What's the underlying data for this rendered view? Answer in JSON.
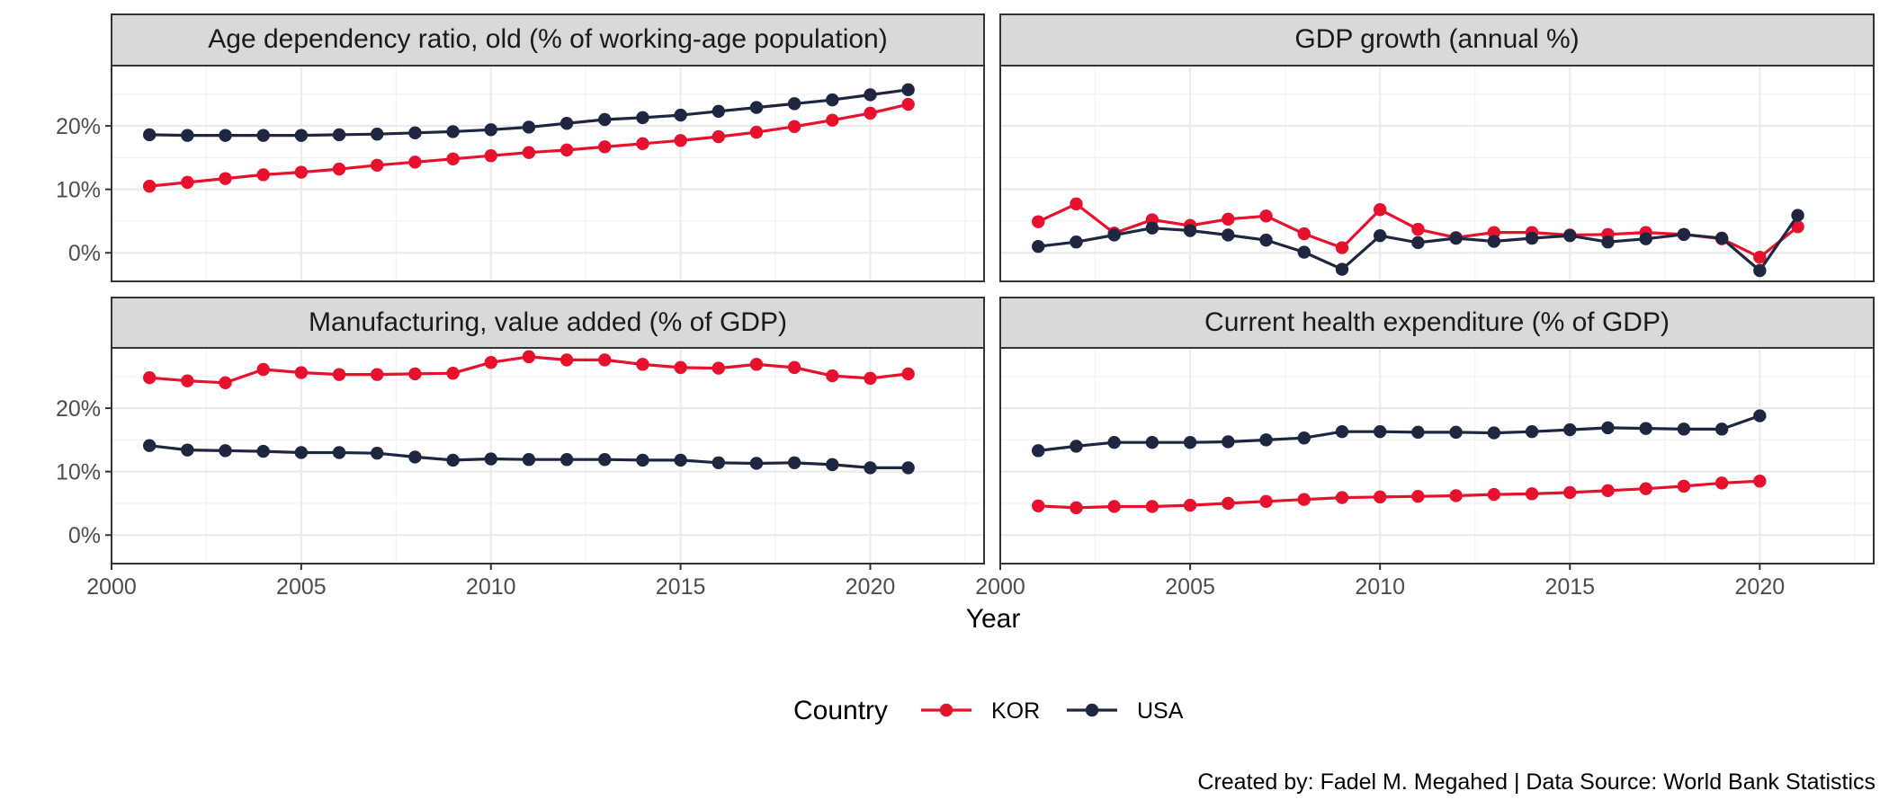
{
  "chart_data": {
    "type": "line",
    "x_label": "Year",
    "x_ticks": [
      2000,
      2005,
      2010,
      2015,
      2020
    ],
    "y_ticks": [
      "0%",
      "10%",
      "20%"
    ],
    "xlim": [
      2000,
      2023
    ],
    "ylim": [
      -4.5,
      29.5
    ],
    "grid": true,
    "legend": {
      "title": "Country",
      "placement": "bottom",
      "entries": [
        "KOR",
        "USA"
      ]
    },
    "colors": {
      "KOR": "#e8112d",
      "USA": "#1f2740"
    },
    "caption": "Created by: Fadel M. Megahed | Data Source: World Bank Statistics",
    "panels": [
      {
        "title": "Age dependency ratio, old (% of working-age population)",
        "series": [
          {
            "name": "KOR",
            "x": [
              2001,
              2002,
              2003,
              2004,
              2005,
              2006,
              2007,
              2008,
              2009,
              2010,
              2011,
              2012,
              2013,
              2014,
              2015,
              2016,
              2017,
              2018,
              2019,
              2020,
              2021
            ],
            "values": [
              10.5,
              11.1,
              11.7,
              12.3,
              12.7,
              13.2,
              13.8,
              14.3,
              14.8,
              15.3,
              15.8,
              16.2,
              16.7,
              17.2,
              17.7,
              18.3,
              19.0,
              19.9,
              20.9,
              22.0,
              23.4
            ]
          },
          {
            "name": "USA",
            "x": [
              2001,
              2002,
              2003,
              2004,
              2005,
              2006,
              2007,
              2008,
              2009,
              2010,
              2011,
              2012,
              2013,
              2014,
              2015,
              2016,
              2017,
              2018,
              2019,
              2020,
              2021
            ],
            "values": [
              18.6,
              18.5,
              18.5,
              18.5,
              18.5,
              18.6,
              18.7,
              18.9,
              19.1,
              19.4,
              19.8,
              20.4,
              21.0,
              21.3,
              21.7,
              22.3,
              22.9,
              23.5,
              24.1,
              24.9,
              25.7
            ]
          }
        ]
      },
      {
        "title": "GDP growth (annual %)",
        "series": [
          {
            "name": "KOR",
            "x": [
              2001,
              2002,
              2003,
              2004,
              2005,
              2006,
              2007,
              2008,
              2009,
              2010,
              2011,
              2012,
              2013,
              2014,
              2015,
              2016,
              2017,
              2018,
              2019,
              2020,
              2021
            ],
            "values": [
              4.9,
              7.7,
              3.1,
              5.2,
              4.3,
              5.3,
              5.8,
              3.0,
              0.8,
              6.8,
              3.7,
              2.4,
              3.2,
              3.2,
              2.8,
              2.9,
              3.2,
              2.9,
              2.2,
              -0.7,
              4.1
            ]
          },
          {
            "name": "USA",
            "x": [
              2001,
              2002,
              2003,
              2004,
              2005,
              2006,
              2007,
              2008,
              2009,
              2010,
              2011,
              2012,
              2013,
              2014,
              2015,
              2016,
              2017,
              2018,
              2019,
              2020,
              2021
            ],
            "values": [
              1.0,
              1.7,
              2.8,
              3.9,
              3.5,
              2.8,
              2.0,
              0.1,
              -2.6,
              2.7,
              1.6,
              2.3,
              1.8,
              2.3,
              2.7,
              1.7,
              2.2,
              2.9,
              2.3,
              -2.8,
              5.9
            ]
          }
        ]
      },
      {
        "title": "Manufacturing, value added (% of GDP)",
        "series": [
          {
            "name": "KOR",
            "x": [
              2001,
              2002,
              2003,
              2004,
              2005,
              2006,
              2007,
              2008,
              2009,
              2010,
              2011,
              2012,
              2013,
              2014,
              2015,
              2016,
              2017,
              2018,
              2019,
              2020,
              2021
            ],
            "values": [
              24.8,
              24.3,
              24.0,
              26.1,
              25.6,
              25.3,
              25.3,
              25.4,
              25.5,
              27.2,
              28.1,
              27.6,
              27.6,
              26.9,
              26.4,
              26.3,
              26.9,
              26.4,
              25.1,
              24.7,
              25.4
            ]
          },
          {
            "name": "USA",
            "x": [
              2001,
              2002,
              2003,
              2004,
              2005,
              2006,
              2007,
              2008,
              2009,
              2010,
              2011,
              2012,
              2013,
              2014,
              2015,
              2016,
              2017,
              2018,
              2019,
              2020,
              2021
            ],
            "values": [
              14.1,
              13.4,
              13.3,
              13.2,
              13.0,
              13.0,
              12.9,
              12.3,
              11.8,
              12.0,
              11.9,
              11.9,
              11.9,
              11.8,
              11.8,
              11.4,
              11.3,
              11.4,
              11.1,
              10.6,
              10.6
            ]
          }
        ]
      },
      {
        "title": "Current health expenditure (% of GDP)",
        "series": [
          {
            "name": "KOR",
            "x": [
              2001,
              2002,
              2003,
              2004,
              2005,
              2006,
              2007,
              2008,
              2009,
              2010,
              2011,
              2012,
              2013,
              2014,
              2015,
              2016,
              2017,
              2018,
              2019,
              2020
            ],
            "values": [
              4.6,
              4.3,
              4.5,
              4.5,
              4.7,
              5.0,
              5.3,
              5.6,
              5.9,
              6.0,
              6.1,
              6.2,
              6.4,
              6.5,
              6.7,
              7.0,
              7.3,
              7.7,
              8.2,
              8.5
            ]
          },
          {
            "name": "USA",
            "x": [
              2001,
              2002,
              2003,
              2004,
              2005,
              2006,
              2007,
              2008,
              2009,
              2010,
              2011,
              2012,
              2013,
              2014,
              2015,
              2016,
              2017,
              2018,
              2019,
              2020
            ],
            "values": [
              13.3,
              14.0,
              14.6,
              14.6,
              14.6,
              14.7,
              15.0,
              15.3,
              16.3,
              16.3,
              16.2,
              16.2,
              16.1,
              16.3,
              16.6,
              16.9,
              16.8,
              16.7,
              16.7,
              18.8
            ]
          }
        ]
      }
    ]
  }
}
